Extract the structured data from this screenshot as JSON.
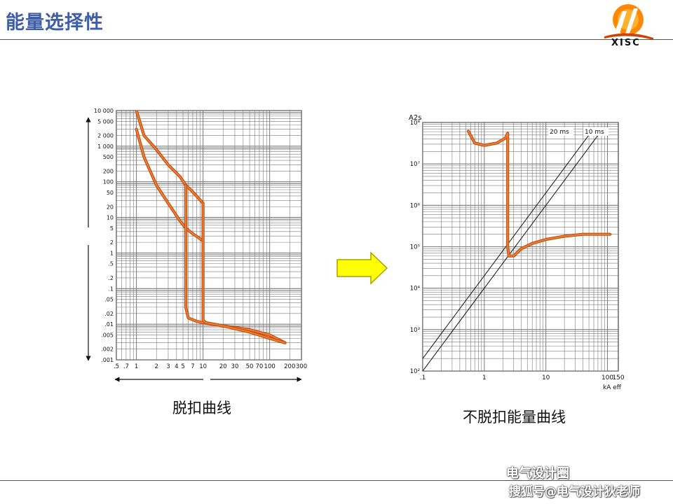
{
  "slide": {
    "title": "能量选择性"
  },
  "logo": {
    "text": "XISC"
  },
  "captions": {
    "left": "脱扣曲线",
    "right": "不脱扣能量曲线"
  },
  "watermark": {
    "line1": "电气设计圈",
    "line2": "搜狐号@电气设计狄老师"
  },
  "colors": {
    "curve": "#f08030",
    "curve_dark": "#c04a10",
    "grid": "#7a7a7a",
    "arrow_fill": "#ffff00",
    "arrow_edge": "#a8a000",
    "title": "#3f5da8"
  },
  "chart_data": [
    {
      "type": "line",
      "x_scale": "log",
      "y_scale": "log",
      "xlim": [
        0.5,
        300
      ],
      "ylim": [
        0.001,
        10000
      ],
      "x_ticks": [
        ".5",
        ".7",
        "1",
        "2",
        "3",
        "4",
        "5",
        "7",
        "10",
        "20",
        "30",
        "50",
        "70",
        "100",
        "200",
        "300"
      ],
      "y_ticks": [
        "10 000",
        "5 000",
        "2 000",
        "1 000",
        "500",
        "200",
        "100",
        "50",
        "20",
        "10",
        "5",
        "2",
        "1",
        ".5",
        ".2",
        ".1",
        ".05",
        ".02",
        ".01",
        ".005",
        ".002",
        ".001"
      ],
      "grid": true,
      "series": [
        {
          "points": [
            [
              1.0,
              10000
            ],
            [
              1.3,
              2000
            ],
            [
              2.0,
              800
            ],
            [
              3.0,
              300
            ],
            [
              4.5,
              140
            ],
            [
              5.5,
              80
            ],
            [
              6.5,
              60
            ],
            [
              8.0,
              40
            ],
            [
              10,
              25
            ]
          ]
        },
        {
          "points": [
            [
              1.0,
              3000
            ],
            [
              1.3,
              500
            ],
            [
              2.0,
              80
            ],
            [
              3.0,
              25
            ],
            [
              4.5,
              8
            ],
            [
              5.5,
              5
            ],
            [
              7.0,
              3.5
            ],
            [
              10,
              2.2
            ]
          ]
        },
        {
          "points": [
            [
              5.5,
              80
            ],
            [
              5.5,
              0.03
            ],
            [
              6.0,
              0.015
            ],
            [
              8.0,
              0.012
            ],
            [
              10,
              0.011
            ],
            [
              20,
              0.009
            ],
            [
              50,
              0.007
            ],
            [
              100,
              0.005
            ],
            [
              170,
              0.003
            ]
          ]
        },
        {
          "points": [
            [
              10,
              25
            ],
            [
              10,
              0.013
            ],
            [
              11,
              0.011
            ],
            [
              20,
              0.009
            ],
            [
              50,
              0.006
            ],
            [
              100,
              0.004
            ],
            [
              170,
              0.003
            ]
          ]
        }
      ]
    },
    {
      "type": "line",
      "x_scale": "log",
      "y_scale": "log",
      "xlim": [
        0.1,
        150
      ],
      "ylim": [
        100,
        100000000
      ],
      "ylabel": "A2s",
      "xlabel": "kA eff",
      "x_ticks": [
        ".1",
        "1",
        "10",
        "100",
        "150"
      ],
      "y_ticks": [
        "10⁸",
        "10⁷",
        "10⁶",
        "10⁵",
        "10⁴",
        "10³",
        "10²"
      ],
      "grid": true,
      "annotations": [
        "20 ms",
        "10 ms"
      ],
      "series": [
        {
          "name": "20 ms",
          "points": [
            [
              0.1,
              200
            ],
            [
              60,
              72000000
            ]
          ]
        },
        {
          "name": "10 ms",
          "points": [
            [
              0.1,
              100
            ],
            [
              85,
              72000000
            ]
          ]
        },
        {
          "points": [
            [
              0.55,
              62000000
            ],
            [
              0.7,
              32000000
            ],
            [
              1.0,
              28000000
            ],
            [
              1.6,
              32000000
            ],
            [
              2.2,
              42000000
            ],
            [
              2.4,
              55000000
            ],
            [
              2.4,
              100000
            ],
            [
              2.5,
              60000
            ],
            [
              3.0,
              60000
            ],
            [
              4.0,
              90000
            ],
            [
              6.0,
              120000
            ],
            [
              10,
              150000
            ],
            [
              20,
              180000
            ],
            [
              40,
              200000
            ],
            [
              60,
              200000
            ],
            [
              110,
              200000
            ]
          ]
        }
      ]
    }
  ]
}
